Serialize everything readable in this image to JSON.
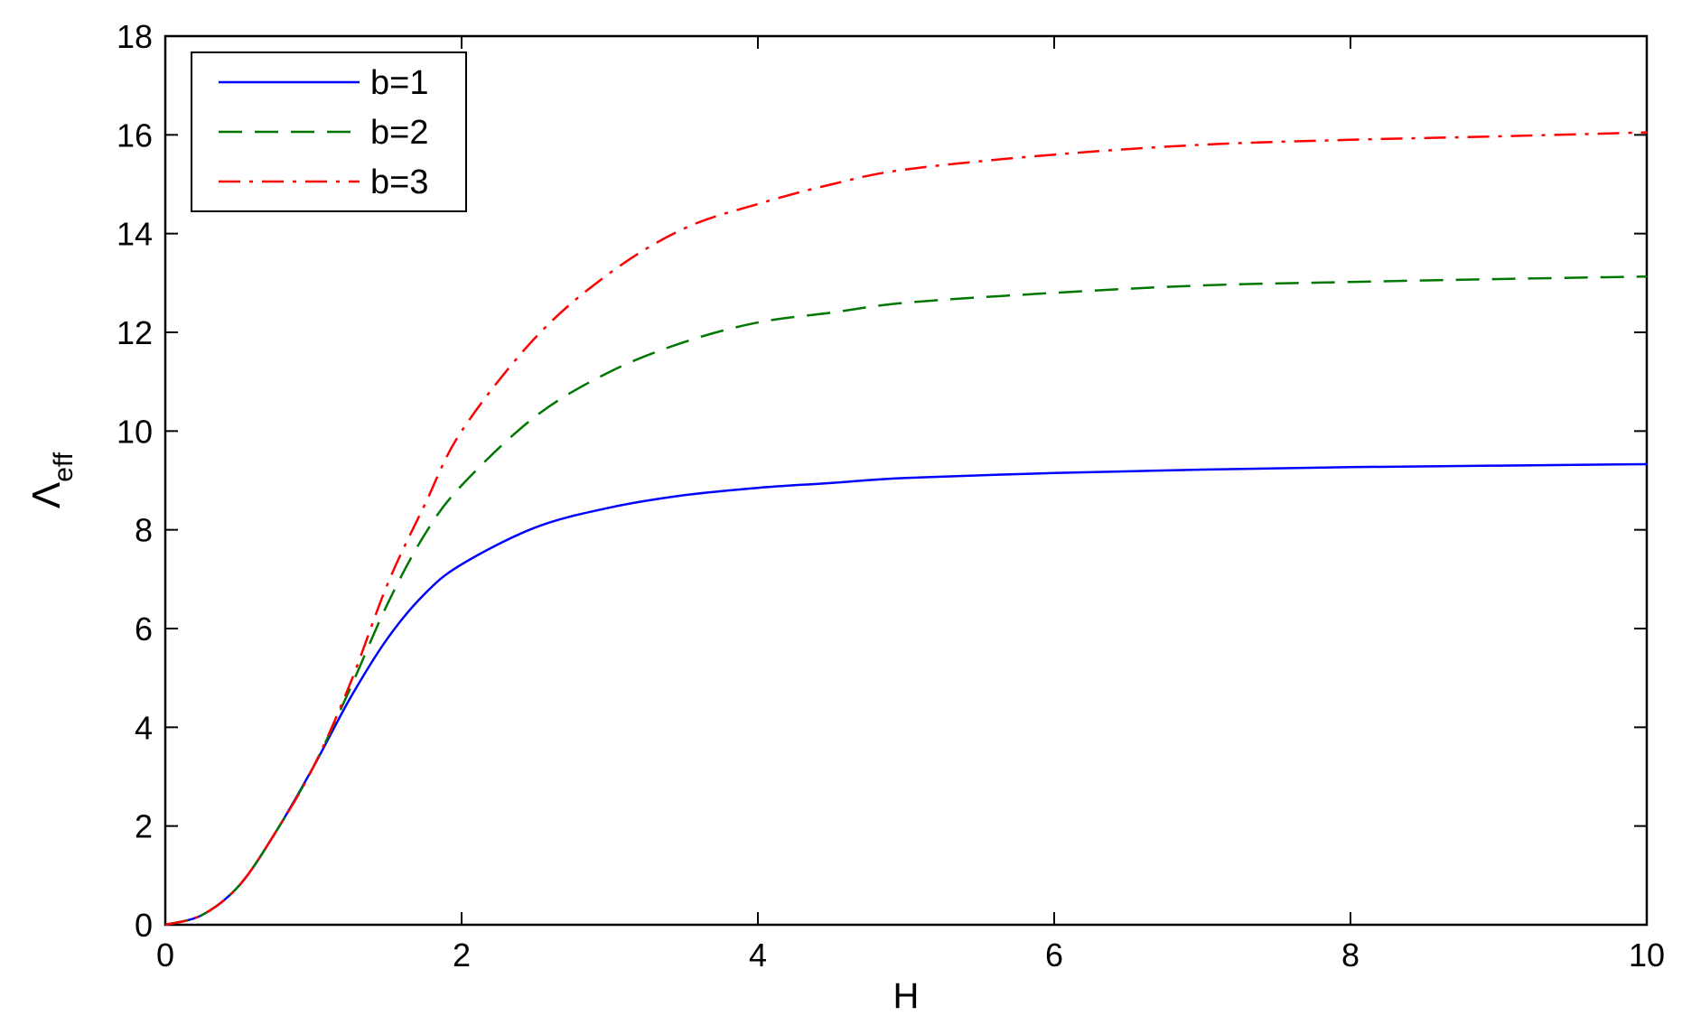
{
  "chart_data": {
    "type": "line",
    "title": "",
    "xlabel": "H",
    "ylabel_main": "Λ",
    "ylabel_sub": "eff",
    "xlim": [
      0,
      10
    ],
    "ylim": [
      0,
      18
    ],
    "x_ticks": [
      0,
      2,
      4,
      6,
      8,
      10
    ],
    "y_ticks": [
      0,
      2,
      4,
      6,
      8,
      10,
      12,
      14,
      16,
      18
    ],
    "grid": false,
    "legend_position": "top-left",
    "x": [
      0,
      0.25,
      0.5,
      0.75,
      1.0,
      1.25,
      1.5,
      1.75,
      2.0,
      2.5,
      3.0,
      3.5,
      4.0,
      4.5,
      5.0,
      6.0,
      7.0,
      8.0,
      9.0,
      10.0
    ],
    "series": [
      {
        "name": "b=1",
        "color": "#0000ff",
        "dash": "solid",
        "values": [
          0,
          0.2,
          0.8,
          1.9,
          3.2,
          4.6,
          5.8,
          6.7,
          7.3,
          8.05,
          8.45,
          8.7,
          8.85,
          8.95,
          9.05,
          9.15,
          9.22,
          9.27,
          9.3,
          9.33
        ]
      },
      {
        "name": "b=2",
        "color": "#007700",
        "dash": "dashed",
        "values": [
          0,
          0.2,
          0.8,
          1.9,
          3.2,
          4.8,
          6.5,
          7.9,
          8.9,
          10.3,
          11.2,
          11.8,
          12.2,
          12.4,
          12.6,
          12.8,
          12.95,
          13.02,
          13.08,
          13.13
        ]
      },
      {
        "name": "b=3",
        "color": "#ff0000",
        "dash": "dashdot",
        "values": [
          0,
          0.2,
          0.8,
          1.9,
          3.2,
          4.9,
          6.9,
          8.5,
          10.0,
          11.9,
          13.2,
          14.1,
          14.6,
          15.0,
          15.3,
          15.6,
          15.8,
          15.9,
          15.97,
          16.05
        ]
      }
    ]
  }
}
